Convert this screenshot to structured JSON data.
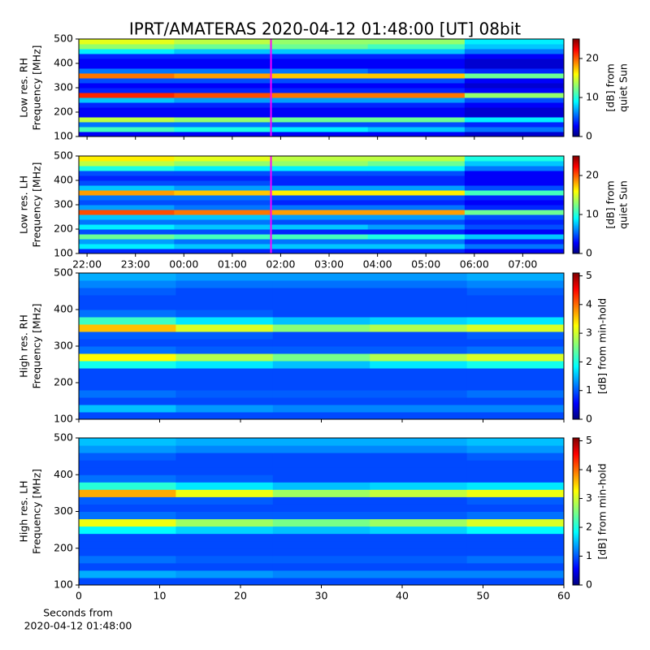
{
  "chart_data": [
    {
      "type": "heatmap",
      "title": "IPRT/AMATERAS 2020-04-12 01:48:00 [UT]   08bit",
      "ylabel": [
        "Low res. RH",
        "Frequency [MHz]"
      ],
      "clabel": [
        "[dB] from",
        "quiet Sun"
      ],
      "colormap": "jet",
      "clim": [
        0,
        25
      ],
      "cticks": [
        0,
        10,
        20
      ],
      "ylim": [
        100,
        500
      ],
      "yticks": [
        100,
        200,
        300,
        400,
        500
      ],
      "xbins": [
        21.83,
        23.8,
        25.8,
        27.8,
        29.8,
        31.85
      ],
      "ybins": [
        100,
        120,
        140,
        160,
        180,
        200,
        220,
        240,
        260,
        280,
        300,
        320,
        340,
        360,
        380,
        400,
        420,
        440,
        460,
        480,
        500
      ],
      "vline": 25.8,
      "vline_color": "#ff00ff",
      "values": [
        [
          3,
          3,
          3,
          3,
          2
        ],
        [
          11,
          10,
          9,
          8,
          6
        ],
        [
          6,
          6,
          5,
          5,
          4
        ],
        [
          14,
          13,
          12,
          12,
          9
        ],
        [
          3,
          3,
          3,
          3,
          2
        ],
        [
          3,
          3,
          3,
          3,
          2
        ],
        [
          4,
          4,
          4,
          4,
          3
        ],
        [
          8,
          7,
          7,
          7,
          5
        ],
        [
          21,
          20,
          19,
          19,
          13
        ],
        [
          4,
          4,
          4,
          4,
          3
        ],
        [
          3,
          3,
          3,
          3,
          2
        ],
        [
          5,
          5,
          5,
          5,
          3
        ],
        [
          19,
          18,
          17,
          17,
          12
        ],
        [
          6,
          6,
          6,
          5,
          4
        ],
        [
          3,
          3,
          3,
          3,
          2
        ],
        [
          3,
          3,
          3,
          3,
          2
        ],
        [
          4,
          4,
          4,
          4,
          3
        ],
        [
          9,
          8,
          8,
          8,
          6
        ],
        [
          13,
          12,
          12,
          11,
          8
        ],
        [
          15,
          14,
          13,
          13,
          9
        ]
      ]
    },
    {
      "type": "heatmap",
      "ylabel": [
        "Low res. LH",
        "Frequency [MHz]"
      ],
      "clabel": [
        "[dB] from",
        "quiet Sun"
      ],
      "colormap": "jet",
      "clim": [
        0,
        25
      ],
      "cticks": [
        0,
        10,
        20
      ],
      "ylim": [
        100,
        500
      ],
      "yticks": [
        100,
        200,
        300,
        400,
        500
      ],
      "xlim": [
        21.83,
        31.85
      ],
      "xticks": [
        {
          "value": 22,
          "label": "22:00"
        },
        {
          "value": 23,
          "label": "23:00"
        },
        {
          "value": 24,
          "label": "00:00"
        },
        {
          "value": 25,
          "label": "01:00"
        },
        {
          "value": 26,
          "label": "02:00"
        },
        {
          "value": 27,
          "label": "03:00"
        },
        {
          "value": 28,
          "label": "04:00"
        },
        {
          "value": 29,
          "label": "05:00"
        },
        {
          "value": 30,
          "label": "06:00"
        },
        {
          "value": 31,
          "label": "07:00"
        }
      ],
      "xbins": [
        21.83,
        23.8,
        25.8,
        27.8,
        29.8,
        31.85
      ],
      "ybins": [
        100,
        120,
        140,
        160,
        180,
        200,
        220,
        240,
        260,
        280,
        300,
        320,
        340,
        360,
        380,
        400,
        420,
        440,
        460,
        480,
        500
      ],
      "vline": 25.8,
      "vline_color": "#ff00ff",
      "values": [
        [
          4,
          4,
          4,
          4,
          3
        ],
        [
          9,
          8,
          8,
          8,
          6
        ],
        [
          7,
          6,
          6,
          6,
          4
        ],
        [
          12,
          11,
          11,
          10,
          8
        ],
        [
          5,
          5,
          4,
          4,
          3
        ],
        [
          9,
          8,
          8,
          7,
          5
        ],
        [
          6,
          6,
          5,
          5,
          4
        ],
        [
          8,
          8,
          7,
          7,
          5
        ],
        [
          20,
          19,
          18,
          18,
          12
        ],
        [
          7,
          6,
          6,
          6,
          4
        ],
        [
          5,
          5,
          4,
          4,
          3
        ],
        [
          6,
          6,
          5,
          5,
          4
        ],
        [
          18,
          17,
          16,
          16,
          11
        ],
        [
          8,
          7,
          7,
          7,
          5
        ],
        [
          5,
          5,
          4,
          4,
          3
        ],
        [
          4,
          4,
          4,
          4,
          3
        ],
        [
          5,
          5,
          5,
          5,
          3
        ],
        [
          10,
          9,
          9,
          9,
          6
        ],
        [
          14,
          13,
          13,
          12,
          8
        ],
        [
          16,
          15,
          14,
          14,
          10
        ]
      ]
    },
    {
      "type": "heatmap",
      "ylabel": [
        "High res. RH",
        "Frequency [MHz]"
      ],
      "clabel": [
        "[dB] from min-hold"
      ],
      "colormap": "jet",
      "clim": [
        0,
        5.1
      ],
      "cticks": [
        0,
        1,
        2,
        3,
        4,
        5
      ],
      "ylim": [
        100,
        500
      ],
      "yticks": [
        100,
        200,
        300,
        400,
        500
      ],
      "xbins": [
        0,
        12,
        24,
        36,
        48,
        60
      ],
      "ybins": [
        100,
        120,
        140,
        160,
        180,
        200,
        220,
        240,
        260,
        280,
        300,
        320,
        340,
        360,
        380,
        400,
        420,
        440,
        460,
        480,
        500
      ],
      "values": [
        [
          1,
          1,
          1,
          1,
          1
        ],
        [
          1.6,
          1.4,
          1.3,
          1.3,
          1.3
        ],
        [
          1,
          1,
          1,
          1,
          1
        ],
        [
          1.2,
          1.1,
          1.1,
          1.1,
          1.2
        ],
        [
          1,
          1,
          1,
          1,
          1
        ],
        [
          1,
          1,
          1,
          1,
          1
        ],
        [
          1,
          1,
          1,
          1,
          1
        ],
        [
          2,
          1.8,
          1.6,
          1.8,
          2
        ],
        [
          3.2,
          2.8,
          2.5,
          2.8,
          3
        ],
        [
          1.2,
          1.1,
          1.1,
          1.1,
          1.2
        ],
        [
          1,
          1,
          1,
          1,
          1
        ],
        [
          1.1,
          1.1,
          1,
          1,
          1.1
        ],
        [
          3.5,
          3,
          2.6,
          2.8,
          3
        ],
        [
          2.2,
          1.8,
          1.6,
          1.7,
          1.8
        ],
        [
          1.2,
          1.1,
          1,
          1,
          1
        ],
        [
          1,
          1,
          1,
          1,
          1
        ],
        [
          1,
          1,
          1,
          1,
          1
        ],
        [
          1.1,
          1,
          1,
          1,
          1.1
        ],
        [
          1.3,
          1.2,
          1.2,
          1.2,
          1.3
        ],
        [
          1.5,
          1.4,
          1.4,
          1.4,
          1.5
        ]
      ]
    },
    {
      "type": "heatmap",
      "ylabel": [
        "High res. LH",
        "Frequency [MHz]"
      ],
      "clabel": [
        "[dB] from min-hold"
      ],
      "colormap": "jet",
      "clim": [
        0,
        5.1
      ],
      "cticks": [
        0,
        1,
        2,
        3,
        4,
        5
      ],
      "ylim": [
        100,
        500
      ],
      "yticks": [
        100,
        200,
        300,
        400,
        500
      ],
      "xlim": [
        0,
        60
      ],
      "xticks": [
        0,
        10,
        20,
        30,
        40,
        50,
        60
      ],
      "xlabel": [
        "Seconds from",
        "2020-04-12 01:48:00"
      ],
      "xbins": [
        0,
        12,
        24,
        36,
        48,
        60
      ],
      "ybins": [
        100,
        120,
        140,
        160,
        180,
        200,
        220,
        240,
        260,
        280,
        300,
        320,
        340,
        360,
        380,
        400,
        420,
        440,
        460,
        480,
        500
      ],
      "values": [
        [
          1,
          1,
          1,
          1,
          1
        ],
        [
          1.5,
          1.4,
          1.3,
          1.3,
          1.3
        ],
        [
          1,
          1,
          1,
          1,
          1
        ],
        [
          1.2,
          1.1,
          1.1,
          1.1,
          1.2
        ],
        [
          1,
          1,
          1,
          1,
          1
        ],
        [
          1,
          1,
          1,
          1,
          1
        ],
        [
          1,
          1,
          1,
          1,
          1
        ],
        [
          1.9,
          1.7,
          1.6,
          1.7,
          1.9
        ],
        [
          3.1,
          2.7,
          2.5,
          2.7,
          3
        ],
        [
          1.2,
          1.1,
          1.1,
          1.1,
          1.2
        ],
        [
          1,
          1,
          1,
          1,
          1
        ],
        [
          1.1,
          1.1,
          1,
          1,
          1.1
        ],
        [
          3.6,
          3.1,
          2.7,
          2.9,
          3.1
        ],
        [
          2.1,
          1.8,
          1.6,
          1.7,
          1.8
        ],
        [
          1.2,
          1.1,
          1,
          1,
          1
        ],
        [
          1,
          1,
          1,
          1,
          1
        ],
        [
          1,
          1,
          1,
          1,
          1
        ],
        [
          1.1,
          1,
          1,
          1,
          1.1
        ],
        [
          1.4,
          1.3,
          1.3,
          1.3,
          1.4
        ],
        [
          1.6,
          1.5,
          1.5,
          1.5,
          1.6
        ]
      ]
    }
  ]
}
